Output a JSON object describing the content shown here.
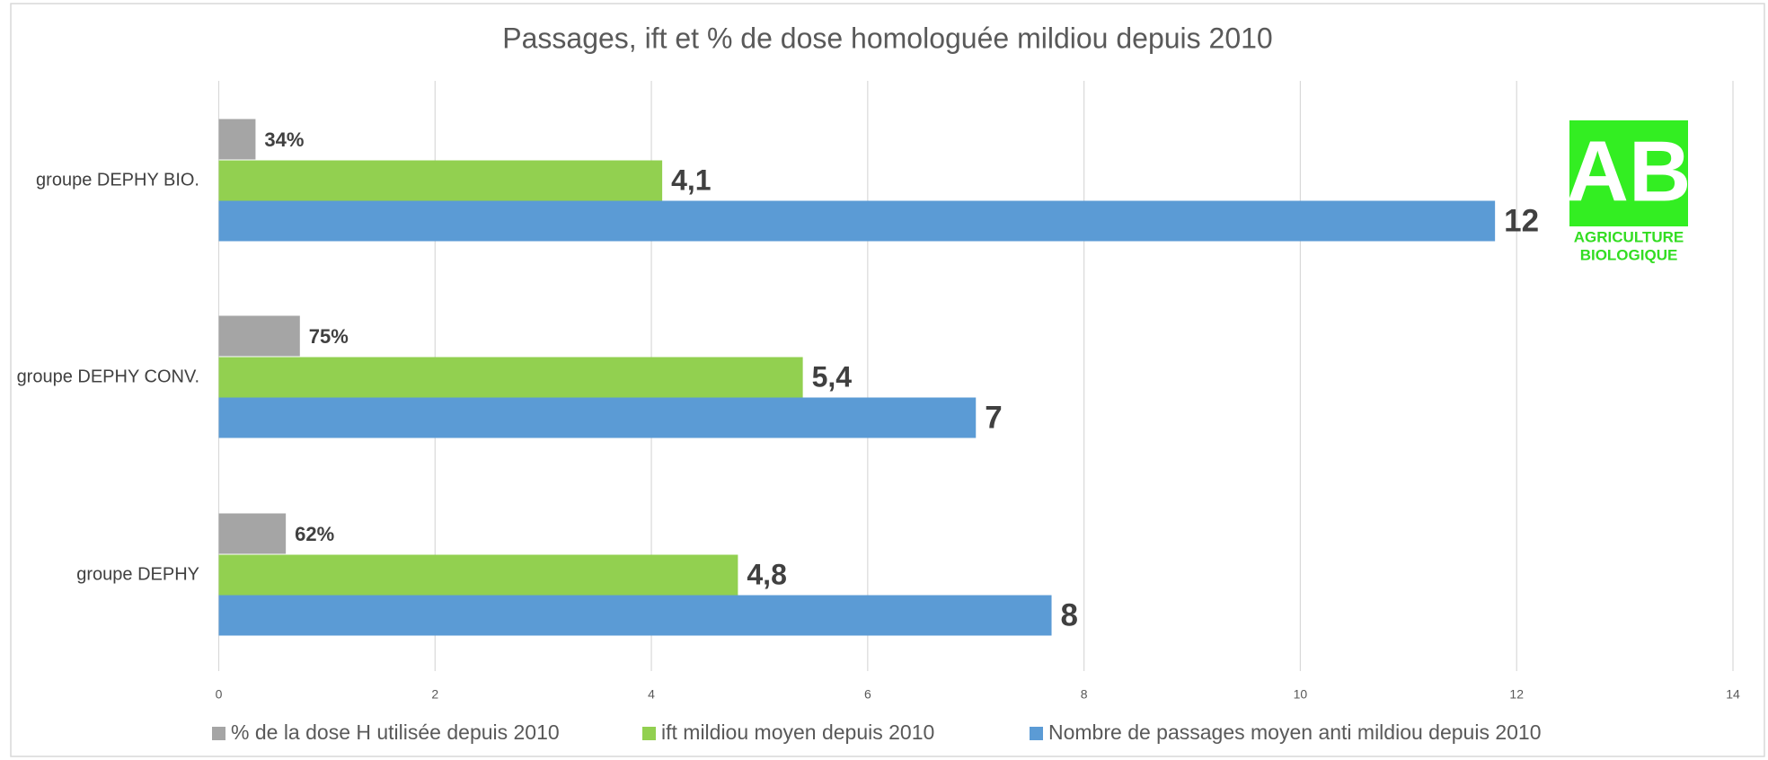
{
  "chart_data": {
    "type": "barh",
    "title": "Passages, ift et % de dose homologuée mildiou depuis 2010",
    "categories": [
      "groupe DEPHY BIO.",
      "groupe DEPHY CONV.",
      "groupe DEPHY"
    ],
    "series": [
      {
        "name": "% de la dose H utilisée depuis 2010",
        "color": "#a5a5a5",
        "values": [
          0.34,
          0.75,
          0.62
        ],
        "value_labels": [
          "34%",
          "75%",
          "62%"
        ]
      },
      {
        "name": "ift mildiou moyen depuis 2010",
        "color": "#92d050",
        "values": [
          4.1,
          5.4,
          4.8
        ],
        "value_labels": [
          "4,1",
          "5,4",
          "4,8"
        ]
      },
      {
        "name": "Nombre de passages moyen anti mildiou depuis 2010",
        "color": "#5b9bd5",
        "values": [
          11.8,
          7,
          7.7
        ],
        "value_labels": [
          "12",
          "7",
          "8"
        ]
      }
    ],
    "xlim": [
      0,
      14
    ],
    "xticks": [
      0,
      2,
      4,
      6,
      8,
      10,
      12,
      14
    ],
    "grid": true,
    "legend": "bottom",
    "logo": {
      "mark": "AB",
      "line1": "AGRICULTURE",
      "line2": "BIOLOGIQUE"
    }
  }
}
